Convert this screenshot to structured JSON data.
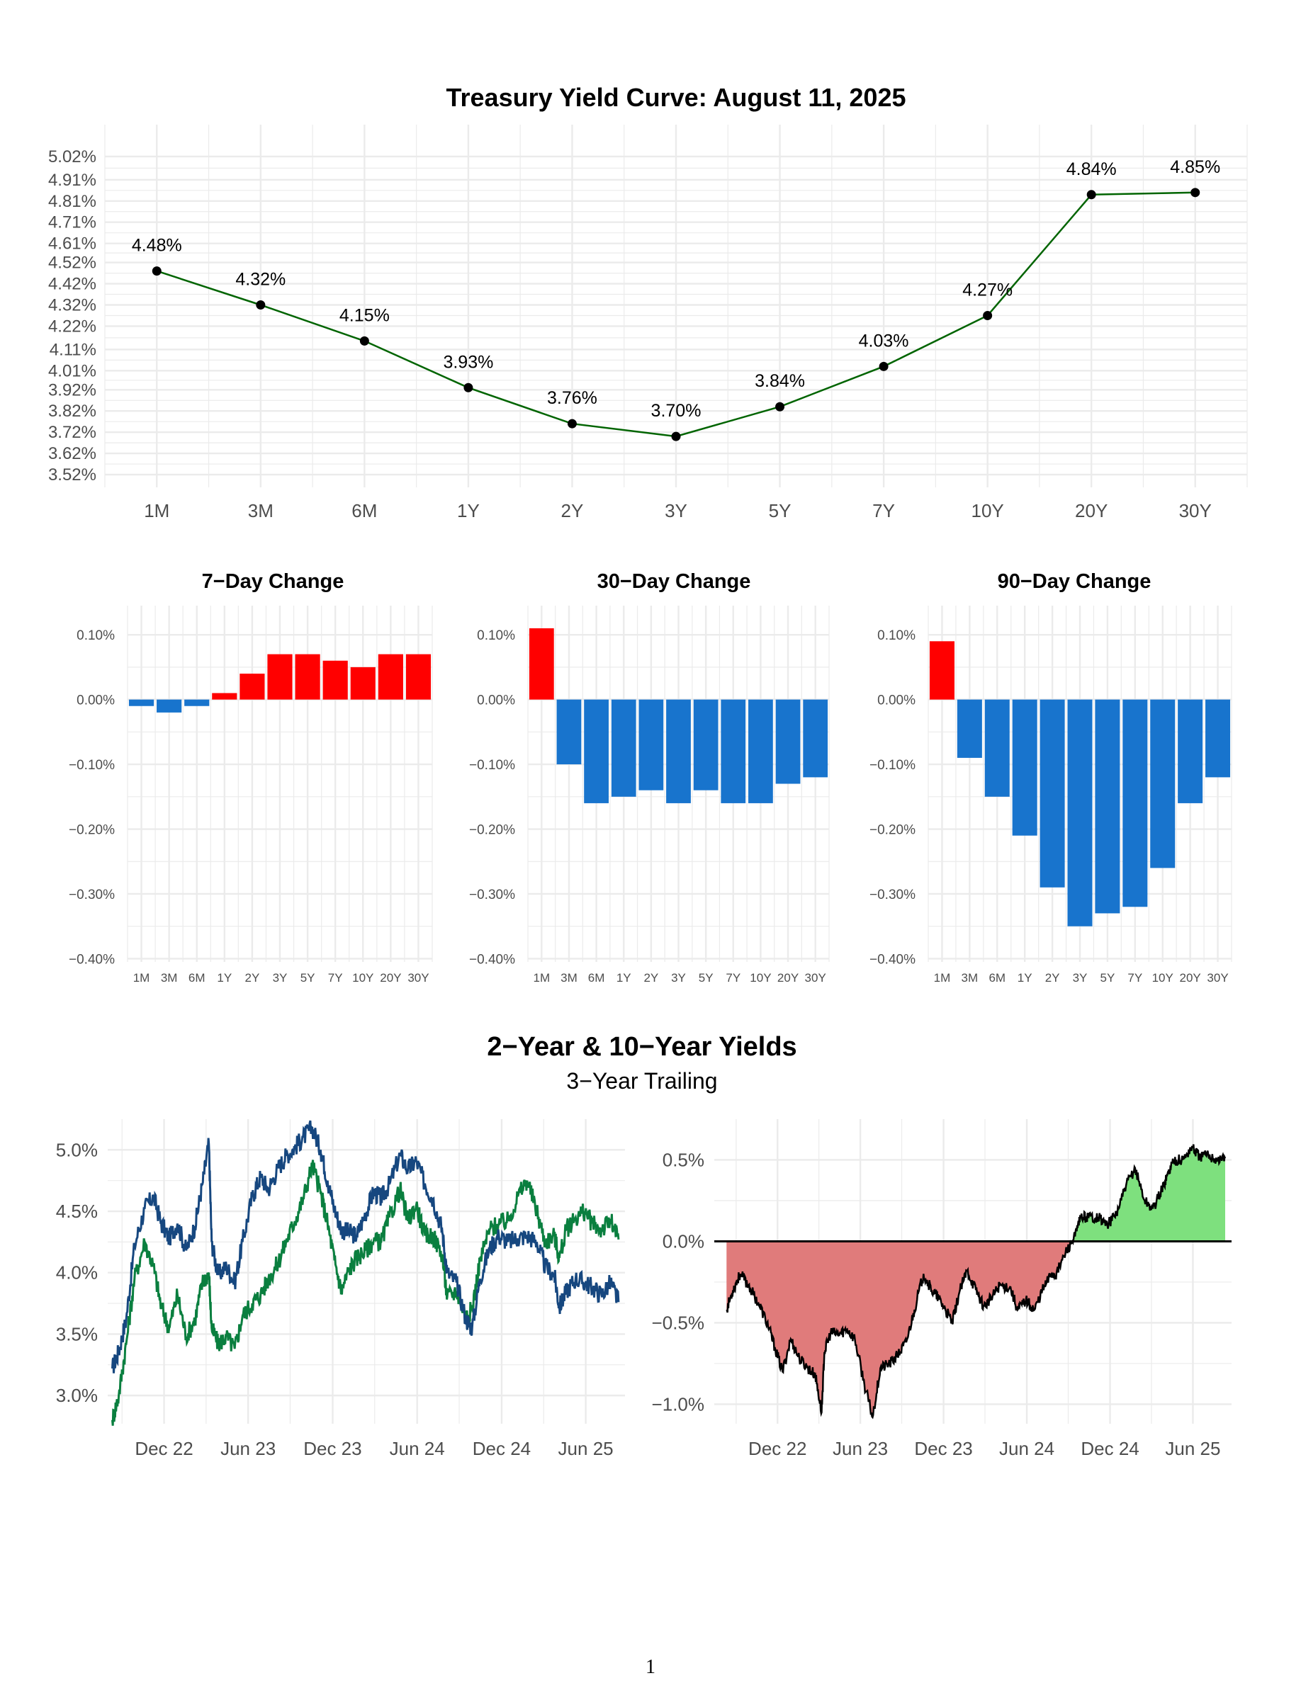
{
  "page_number": "1",
  "section_title": "2−Year & 10−Year Yields",
  "section_subtitle": "3−Year Trailing",
  "colors": {
    "curve_line": "#006400",
    "curve_point": "#000000",
    "increase": "#ff0000",
    "decrease": "#1874cd",
    "two_year": "#16477f",
    "ten_year": "#0a7f3f",
    "spread_line": "#000000",
    "spread_positive": "#7ee07e",
    "spread_negative": "#e07b7b",
    "grid": "#ebebeb"
  },
  "chart_data": [
    {
      "id": "yield-curve",
      "type": "line",
      "title": "Treasury Yield Curve: August 11, 2025",
      "categories": [
        "1M",
        "3M",
        "6M",
        "1Y",
        "2Y",
        "3Y",
        "5Y",
        "7Y",
        "10Y",
        "20Y",
        "30Y"
      ],
      "values": [
        4.48,
        4.32,
        4.15,
        3.93,
        3.76,
        3.7,
        3.84,
        4.03,
        4.27,
        4.84,
        4.85
      ],
      "data_labels": [
        "4.48%",
        "4.32%",
        "4.15%",
        "3.93%",
        "3.76%",
        "3.70%",
        "3.84%",
        "4.03%",
        "4.27%",
        "4.84%",
        "4.85%"
      ],
      "yticks": [
        3.52,
        3.62,
        3.72,
        3.82,
        3.92,
        4.01,
        4.11,
        4.22,
        4.32,
        4.42,
        4.52,
        4.61,
        4.71,
        4.81,
        4.91,
        5.02
      ],
      "ytick_labels": [
        "3.52%",
        "3.62%",
        "3.72%",
        "3.82%",
        "3.92%",
        "4.01%",
        "4.11%",
        "4.22%",
        "4.32%",
        "4.42%",
        "4.52%",
        "4.61%",
        "4.71%",
        "4.81%",
        "4.91%",
        "5.02%"
      ],
      "ylim": [
        3.46,
        5.17
      ],
      "grid": true
    },
    {
      "id": "change-7d",
      "type": "bar",
      "title": "7−Day Change",
      "categories": [
        "1M",
        "3M",
        "6M",
        "1Y",
        "2Y",
        "3Y",
        "5Y",
        "7Y",
        "10Y",
        "20Y",
        "30Y"
      ],
      "values": [
        -0.01,
        -0.02,
        -0.01,
        0.01,
        0.04,
        0.07,
        0.07,
        0.06,
        0.05,
        0.07,
        0.07
      ],
      "yticks": [
        -0.4,
        -0.3,
        -0.2,
        -0.1,
        0.0,
        0.1
      ],
      "ytick_labels": [
        "−0.40%",
        "−0.30%",
        "−0.20%",
        "−0.10%",
        "0.00%",
        "0.10%"
      ],
      "ylim": [
        -0.405,
        0.145
      ],
      "grid": true
    },
    {
      "id": "change-30d",
      "type": "bar",
      "title": "30−Day Change",
      "categories": [
        "1M",
        "3M",
        "6M",
        "1Y",
        "2Y",
        "3Y",
        "5Y",
        "7Y",
        "10Y",
        "20Y",
        "30Y"
      ],
      "values": [
        0.11,
        -0.1,
        -0.16,
        -0.15,
        -0.14,
        -0.16,
        -0.14,
        -0.16,
        -0.16,
        -0.13,
        -0.12
      ],
      "yticks": [
        -0.4,
        -0.3,
        -0.2,
        -0.1,
        0.0,
        0.1
      ],
      "ytick_labels": [
        "−0.40%",
        "−0.30%",
        "−0.20%",
        "−0.10%",
        "0.00%",
        "0.10%"
      ],
      "ylim": [
        -0.405,
        0.145
      ],
      "grid": true
    },
    {
      "id": "change-90d",
      "type": "bar",
      "title": "90−Day Change",
      "categories": [
        "1M",
        "3M",
        "6M",
        "1Y",
        "2Y",
        "3Y",
        "5Y",
        "7Y",
        "10Y",
        "20Y",
        "30Y"
      ],
      "values": [
        0.09,
        -0.09,
        -0.15,
        -0.21,
        -0.29,
        -0.35,
        -0.33,
        -0.32,
        -0.26,
        -0.16,
        -0.12
      ],
      "yticks": [
        -0.4,
        -0.3,
        -0.2,
        -0.1,
        0.0,
        0.1
      ],
      "ytick_labels": [
        "−0.40%",
        "−0.30%",
        "−0.20%",
        "−0.10%",
        "0.00%",
        "0.10%"
      ],
      "ylim": [
        -0.405,
        0.145
      ],
      "grid": true
    },
    {
      "id": "yields-history",
      "type": "line",
      "x_type": "date",
      "xlim": [
        "2022-08-01",
        "2025-08-25"
      ],
      "xticks": [
        "2022-12-01",
        "2023-06-01",
        "2023-12-01",
        "2024-06-01",
        "2024-12-01",
        "2025-06-01"
      ],
      "xtick_labels": [
        "Dec 22",
        "Jun 23",
        "Dec 23",
        "Jun 24",
        "Dec 24",
        "Jun 25"
      ],
      "yticks": [
        3.0,
        3.5,
        4.0,
        4.5,
        5.0
      ],
      "ytick_labels": [
        "3.0%",
        "3.5%",
        "4.0%",
        "4.5%",
        "5.0%"
      ],
      "ylim": [
        2.77,
        5.25
      ],
      "grid": true,
      "series": [
        {
          "key": "two_year",
          "x": [
            "2022-08-11",
            "2022-08-25",
            "2022-09-10",
            "2022-09-28",
            "2022-10-20",
            "2022-11-08",
            "2022-11-25",
            "2022-12-12",
            "2022-12-30",
            "2023-01-18",
            "2023-02-06",
            "2023-02-22",
            "2023-03-08",
            "2023-03-14",
            "2023-03-28",
            "2023-04-15",
            "2023-05-03",
            "2023-05-20",
            "2023-06-10",
            "2023-06-28",
            "2023-07-15",
            "2023-08-05",
            "2023-08-22",
            "2023-09-10",
            "2023-09-28",
            "2023-10-18",
            "2023-11-05",
            "2023-11-20",
            "2023-12-05",
            "2023-12-20",
            "2024-01-05",
            "2024-01-22",
            "2024-02-10",
            "2024-02-28",
            "2024-03-15",
            "2024-04-02",
            "2024-04-25",
            "2024-05-12",
            "2024-05-30",
            "2024-06-18",
            "2024-07-05",
            "2024-07-25",
            "2024-08-05",
            "2024-08-25",
            "2024-09-15",
            "2024-09-28",
            "2024-10-15",
            "2024-11-05",
            "2024-11-25",
            "2024-12-15",
            "2025-01-05",
            "2025-01-25",
            "2025-02-15",
            "2025-03-05",
            "2025-03-25",
            "2025-04-05",
            "2025-04-20",
            "2025-05-10",
            "2025-05-30",
            "2025-06-15",
            "2025-07-05",
            "2025-07-25",
            "2025-08-11"
          ],
          "values": [
            3.22,
            3.36,
            3.62,
            4.22,
            4.52,
            4.62,
            4.4,
            4.28,
            4.4,
            4.18,
            4.38,
            4.72,
            5.05,
            4.25,
            3.98,
            4.05,
            3.92,
            4.25,
            4.62,
            4.78,
            4.68,
            4.85,
            4.95,
            5.02,
            5.1,
            5.18,
            5.0,
            4.75,
            4.52,
            4.35,
            4.33,
            4.3,
            4.48,
            4.66,
            4.6,
            4.72,
            4.96,
            4.84,
            4.91,
            4.72,
            4.6,
            4.35,
            4.0,
            3.92,
            3.62,
            3.55,
            3.95,
            4.2,
            4.3,
            4.25,
            4.28,
            4.3,
            4.25,
            4.05,
            3.98,
            3.72,
            3.85,
            3.95,
            3.92,
            3.88,
            3.82,
            3.92,
            3.76
          ]
        },
        {
          "key": "ten_year",
          "x": [
            "2022-08-11",
            "2022-08-25",
            "2022-09-10",
            "2022-09-28",
            "2022-10-20",
            "2022-11-08",
            "2022-11-25",
            "2022-12-12",
            "2022-12-30",
            "2023-01-18",
            "2023-02-06",
            "2023-02-22",
            "2023-03-08",
            "2023-03-14",
            "2023-03-28",
            "2023-04-15",
            "2023-05-03",
            "2023-05-20",
            "2023-06-10",
            "2023-06-28",
            "2023-07-15",
            "2023-08-05",
            "2023-08-22",
            "2023-09-10",
            "2023-09-28",
            "2023-10-18",
            "2023-11-05",
            "2023-11-20",
            "2023-12-05",
            "2023-12-20",
            "2024-01-05",
            "2024-01-22",
            "2024-02-10",
            "2024-02-28",
            "2024-03-15",
            "2024-04-02",
            "2024-04-25",
            "2024-05-12",
            "2024-05-30",
            "2024-06-18",
            "2024-07-05",
            "2024-07-25",
            "2024-08-05",
            "2024-08-25",
            "2024-09-15",
            "2024-09-28",
            "2024-10-15",
            "2024-11-05",
            "2024-11-25",
            "2024-12-15",
            "2025-01-05",
            "2025-01-25",
            "2025-02-15",
            "2025-03-05",
            "2025-03-25",
            "2025-04-05",
            "2025-04-20",
            "2025-05-10",
            "2025-05-30",
            "2025-06-15",
            "2025-07-05",
            "2025-07-25",
            "2025-08-11"
          ],
          "values": [
            2.8,
            3.0,
            3.42,
            3.95,
            4.25,
            4.05,
            3.72,
            3.55,
            3.82,
            3.48,
            3.62,
            3.92,
            4.0,
            3.55,
            3.42,
            3.48,
            3.38,
            3.65,
            3.75,
            3.82,
            3.95,
            4.08,
            4.25,
            4.42,
            4.6,
            4.88,
            4.65,
            4.4,
            4.1,
            3.85,
            4.02,
            4.12,
            4.18,
            4.26,
            4.25,
            4.45,
            4.68,
            4.42,
            4.55,
            4.3,
            4.3,
            4.15,
            3.8,
            3.85,
            3.65,
            3.7,
            4.1,
            4.35,
            4.4,
            4.42,
            4.62,
            4.75,
            4.5,
            4.25,
            4.3,
            4.12,
            4.35,
            4.45,
            4.5,
            4.4,
            4.35,
            4.42,
            4.27
          ]
        }
      ]
    },
    {
      "id": "spread-history",
      "type": "area",
      "x_type": "date",
      "xlim": [
        "2022-07-15",
        "2025-08-25"
      ],
      "xticks": [
        "2022-12-01",
        "2023-06-01",
        "2023-12-01",
        "2024-06-01",
        "2024-12-01",
        "2025-06-01"
      ],
      "xtick_labels": [
        "Dec 22",
        "Jun 23",
        "Dec 23",
        "Jun 24",
        "Dec 24",
        "Jun 25"
      ],
      "yticks": [
        -1.0,
        -0.5,
        0.0,
        0.5
      ],
      "ytick_labels": [
        "−1.0%",
        "−0.5%",
        "0.0%",
        "0.5%"
      ],
      "ylim": [
        -1.12,
        0.75
      ],
      "grid": true,
      "baseline": 0,
      "series": [
        {
          "key": "spread",
          "x": [
            "2022-08-11",
            "2022-08-25",
            "2022-09-10",
            "2022-09-28",
            "2022-10-20",
            "2022-11-08",
            "2022-11-25",
            "2022-12-12",
            "2022-12-30",
            "2023-01-18",
            "2023-02-06",
            "2023-02-22",
            "2023-03-08",
            "2023-03-14",
            "2023-03-28",
            "2023-04-15",
            "2023-05-03",
            "2023-05-20",
            "2023-06-10",
            "2023-06-28",
            "2023-07-15",
            "2023-08-05",
            "2023-08-22",
            "2023-09-10",
            "2023-09-28",
            "2023-10-18",
            "2023-11-05",
            "2023-11-20",
            "2023-12-05",
            "2023-12-20",
            "2024-01-05",
            "2024-01-22",
            "2024-02-10",
            "2024-02-28",
            "2024-03-15",
            "2024-04-02",
            "2024-04-25",
            "2024-05-12",
            "2024-05-30",
            "2024-06-18",
            "2024-07-05",
            "2024-07-25",
            "2024-08-05",
            "2024-08-25",
            "2024-09-15",
            "2024-09-28",
            "2024-10-15",
            "2024-11-05",
            "2024-11-25",
            "2024-12-15",
            "2025-01-05",
            "2025-01-25",
            "2025-02-15",
            "2025-03-05",
            "2025-03-25",
            "2025-04-05",
            "2025-04-20",
            "2025-05-10",
            "2025-05-30",
            "2025-06-15",
            "2025-07-05",
            "2025-07-25",
            "2025-08-11"
          ],
          "values": [
            -0.42,
            -0.3,
            -0.2,
            -0.27,
            -0.38,
            -0.5,
            -0.65,
            -0.8,
            -0.6,
            -0.72,
            -0.78,
            -0.82,
            -1.05,
            -0.68,
            -0.56,
            -0.57,
            -0.54,
            -0.6,
            -0.88,
            -1.08,
            -0.78,
            -0.75,
            -0.7,
            -0.62,
            -0.42,
            -0.2,
            -0.3,
            -0.35,
            -0.42,
            -0.5,
            -0.31,
            -0.18,
            -0.3,
            -0.4,
            -0.35,
            -0.27,
            -0.28,
            -0.42,
            -0.36,
            -0.42,
            -0.3,
            -0.2,
            -0.2,
            -0.07,
            0.03,
            0.15,
            0.15,
            0.15,
            0.1,
            0.17,
            0.34,
            0.45,
            0.25,
            0.2,
            0.32,
            0.4,
            0.5,
            0.5,
            0.58,
            0.52,
            0.53,
            0.5,
            0.51
          ]
        }
      ]
    }
  ]
}
